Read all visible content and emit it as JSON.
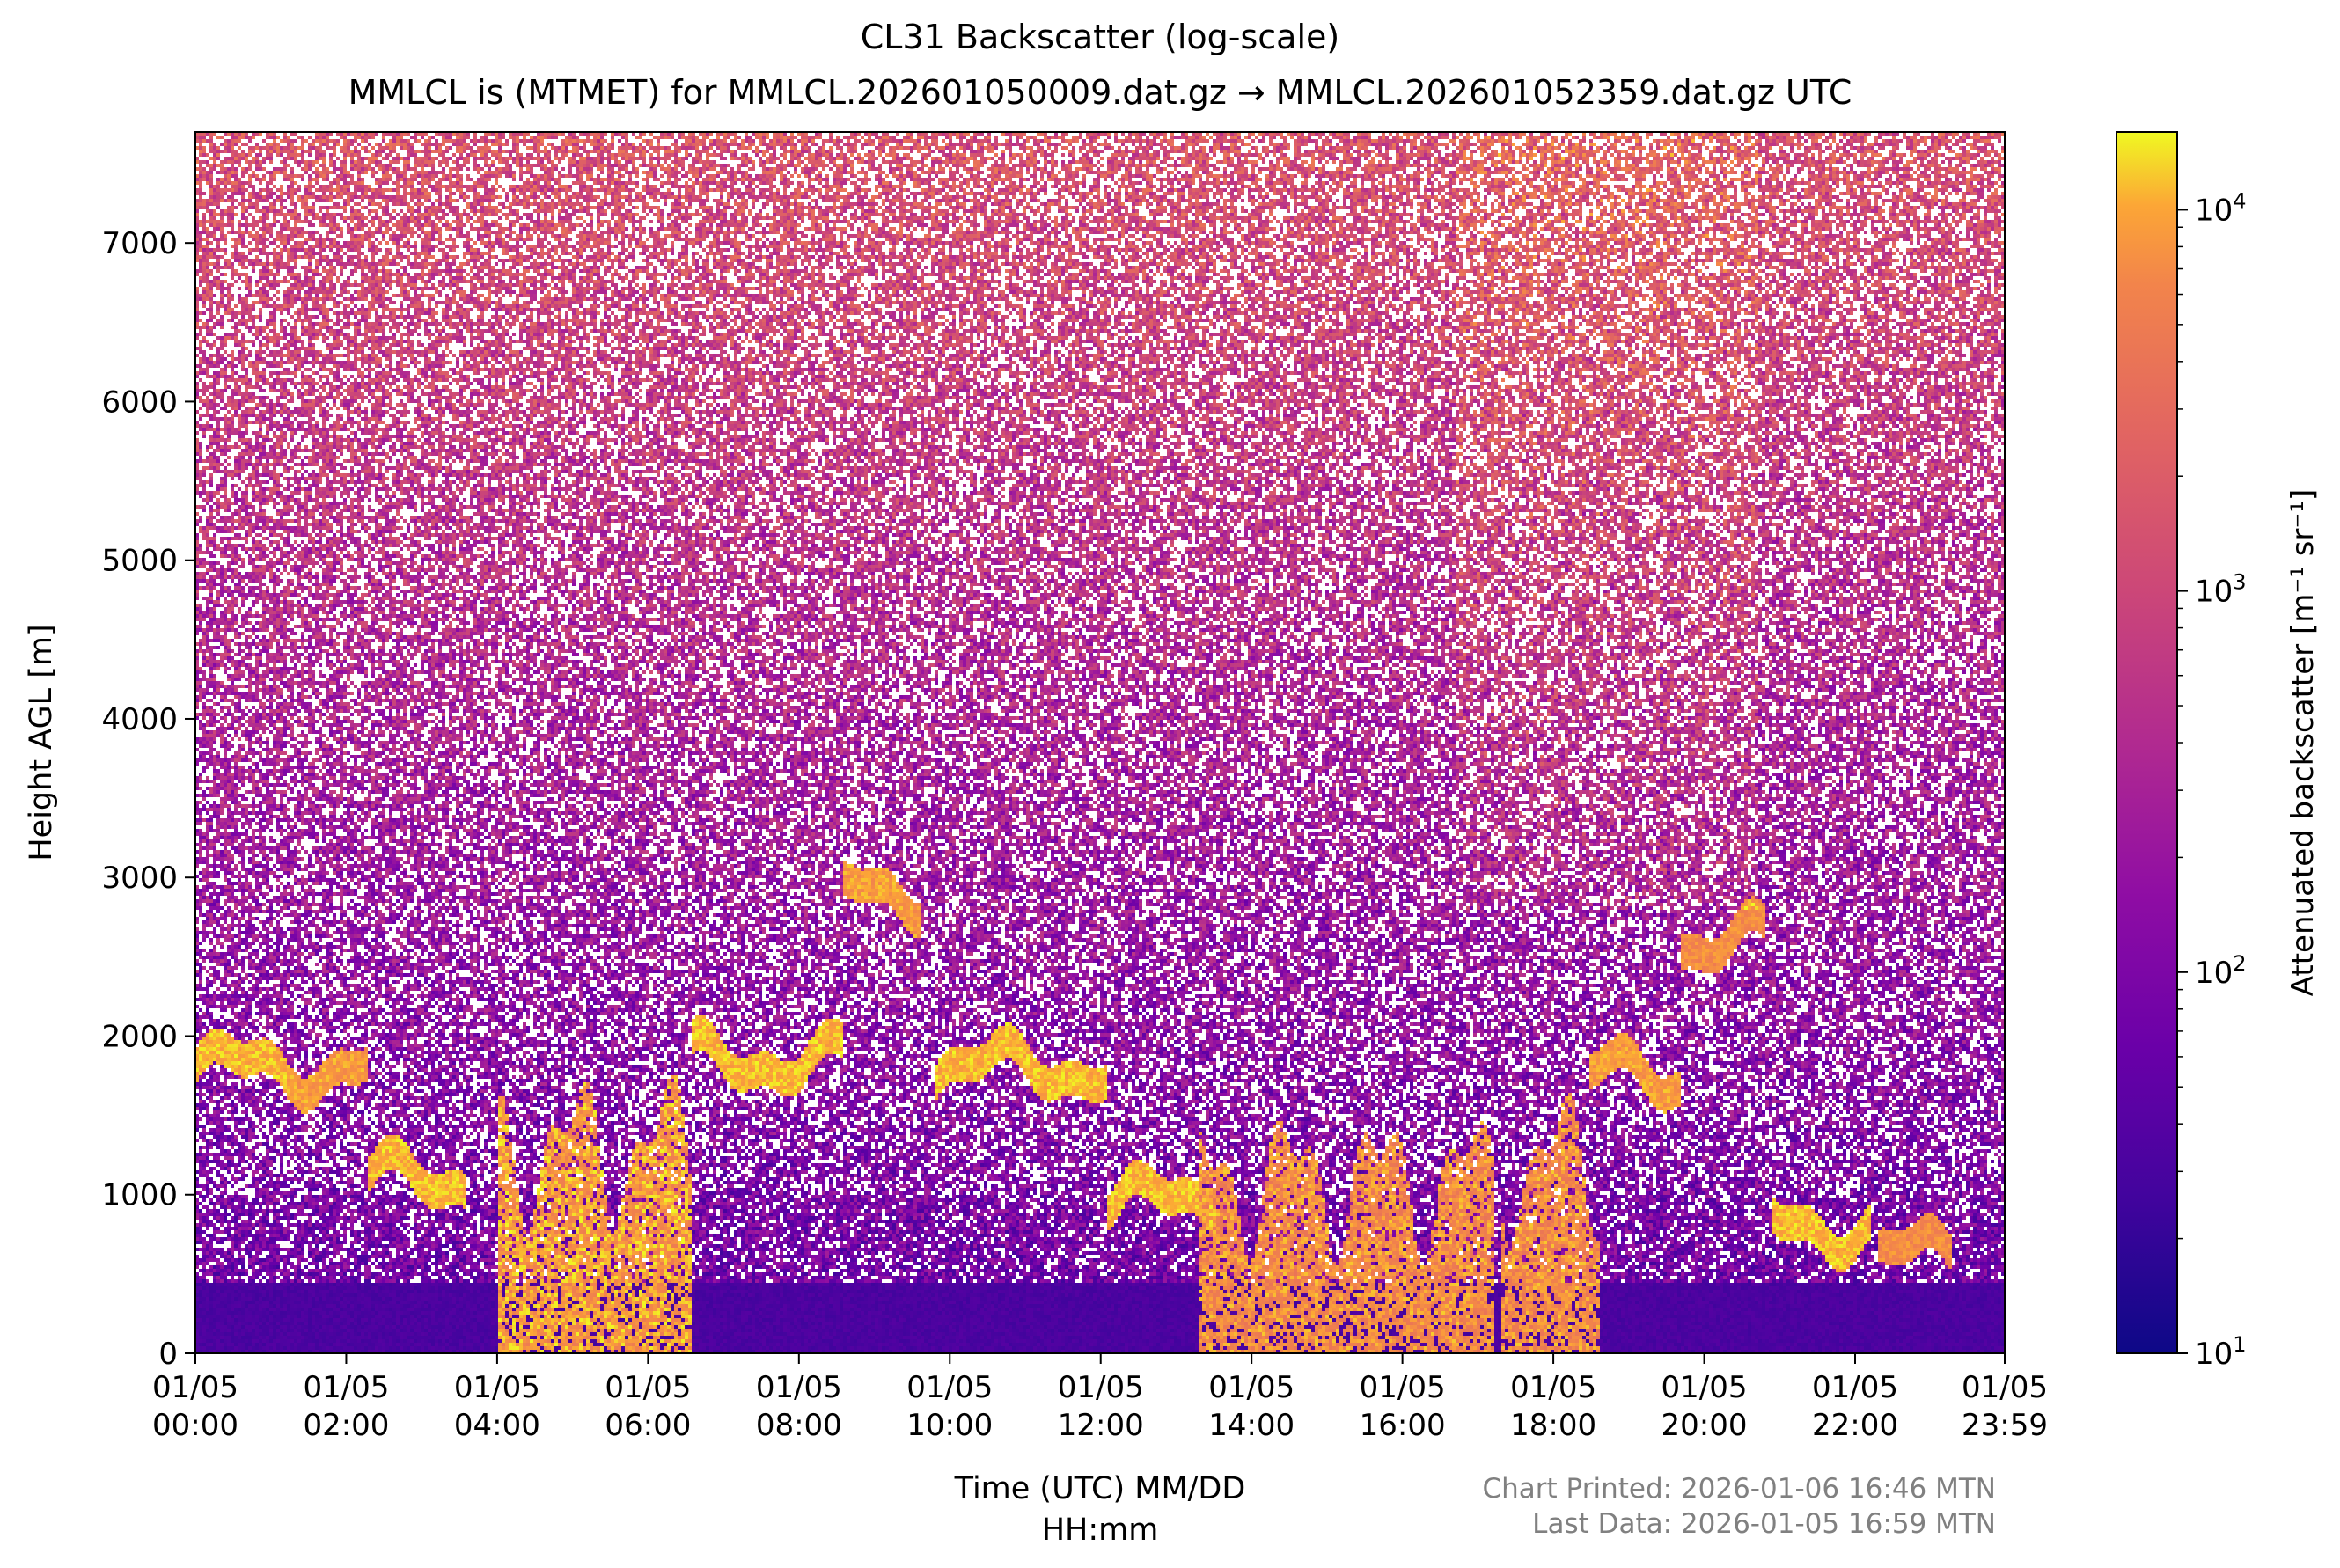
{
  "chart_data": {
    "type": "heatmap",
    "title": "CL31 Backscatter (log-scale)",
    "subtitle": "MMLCL is (MTMET) for MMLCL.202601050009.dat.gz → MMLCL.202601052359.dat.gz UTC",
    "xlabel_line1": "Time (UTC) MM/DD",
    "xlabel_line2": "HH:mm",
    "ylabel": "Height AGL [m]",
    "xlim_hours": [
      0,
      23.983
    ],
    "ylim": [
      0,
      7700
    ],
    "xticks": [
      {
        "hour": 0,
        "date": "01/05",
        "time": "00:00"
      },
      {
        "hour": 2,
        "date": "01/05",
        "time": "02:00"
      },
      {
        "hour": 4,
        "date": "01/05",
        "time": "04:00"
      },
      {
        "hour": 6,
        "date": "01/05",
        "time": "06:00"
      },
      {
        "hour": 8,
        "date": "01/05",
        "time": "08:00"
      },
      {
        "hour": 10,
        "date": "01/05",
        "time": "10:00"
      },
      {
        "hour": 12,
        "date": "01/05",
        "time": "12:00"
      },
      {
        "hour": 14,
        "date": "01/05",
        "time": "14:00"
      },
      {
        "hour": 16,
        "date": "01/05",
        "time": "16:00"
      },
      {
        "hour": 18,
        "date": "01/05",
        "time": "18:00"
      },
      {
        "hour": 20,
        "date": "01/05",
        "time": "20:00"
      },
      {
        "hour": 22,
        "date": "01/05",
        "time": "22:00"
      },
      {
        "hour": 23.983,
        "date": "01/05",
        "time": "23:59"
      }
    ],
    "yticks": [
      {
        "value": 0,
        "label": "0"
      },
      {
        "value": 1000,
        "label": "1000"
      },
      {
        "value": 2000,
        "label": "2000"
      },
      {
        "value": 3000,
        "label": "3000"
      },
      {
        "value": 4000,
        "label": "4000"
      },
      {
        "value": 5000,
        "label": "5000"
      },
      {
        "value": 6000,
        "label": "6000"
      },
      {
        "value": 7000,
        "label": "7000"
      }
    ],
    "colorbar": {
      "label": "Attenuated backscatter [m⁻¹ sr⁻¹]",
      "scale": "log",
      "range": [
        10,
        16000
      ],
      "colormap": "plasma",
      "ticks": [
        {
          "value": 10,
          "base": "10",
          "exp": "1"
        },
        {
          "value": 100,
          "base": "10",
          "exp": "2"
        },
        {
          "value": 1000,
          "base": "10",
          "exp": "3"
        },
        {
          "value": 10000,
          "base": "10",
          "exp": "4"
        }
      ]
    },
    "features": [
      {
        "name": "surface layer",
        "start_hour": 0,
        "end_hour": 23.983,
        "top_m": 450,
        "log10_level": 1.4
      },
      {
        "name": "cloud layer",
        "start_hour": 0.0,
        "end_hour": 1.2,
        "height_m": 1800,
        "log10_level": 3.9
      },
      {
        "name": "cloud layer",
        "start_hour": 1.2,
        "end_hour": 2.3,
        "height_m": 1800,
        "log10_level": 3.8
      },
      {
        "name": "cloud layer",
        "start_hour": 2.3,
        "end_hour": 3.6,
        "height_m": 1100,
        "log10_level": 3.9
      },
      {
        "name": "precipitation shaft",
        "start_hour": 4.0,
        "end_hour": 6.6,
        "height_m": 1300,
        "log10_level": 4.0
      },
      {
        "name": "cloud layer",
        "start_hour": 6.6,
        "end_hour": 8.6,
        "height_m": 1850,
        "log10_level": 3.9
      },
      {
        "name": "cloud layer",
        "start_hour": 8.6,
        "end_hour": 9.6,
        "height_m": 2900,
        "log10_level": 3.8
      },
      {
        "name": "cloud layer",
        "start_hour": 9.8,
        "end_hour": 12.1,
        "height_m": 1800,
        "log10_level": 3.9
      },
      {
        "name": "cloud layer",
        "start_hour": 12.1,
        "end_hour": 13.6,
        "height_m": 950,
        "log10_level": 3.9
      },
      {
        "name": "precipitation shaft",
        "start_hour": 13.3,
        "end_hour": 17.2,
        "height_m": 1100,
        "log10_level": 3.9
      },
      {
        "name": "precipitation shaft",
        "start_hour": 17.3,
        "end_hour": 18.6,
        "height_m": 1200,
        "log10_level": 3.9
      },
      {
        "name": "cloud layer",
        "start_hour": 18.5,
        "end_hour": 19.7,
        "height_m": 1750,
        "log10_level": 3.8
      },
      {
        "name": "cloud layer",
        "start_hour": 19.7,
        "end_hour": 20.8,
        "height_m": 2600,
        "log10_level": 3.7
      },
      {
        "name": "cloud layer",
        "start_hour": 20.9,
        "end_hour": 22.2,
        "height_m": 800,
        "log10_level": 3.9
      },
      {
        "name": "cloud layer",
        "start_hour": 22.3,
        "end_hour": 23.3,
        "height_m": 620,
        "log10_level": 3.7
      },
      {
        "name": "upper noise enhancement",
        "start_hour": 16.7,
        "end_hour": 20.7,
        "height_m": 6000,
        "log10_level": 3.3
      }
    ]
  },
  "footer": {
    "printed": "Chart Printed: 2026-01-06 16:46 MTN",
    "last_data": "Last Data: 2026-01-05 16:59 MTN"
  }
}
